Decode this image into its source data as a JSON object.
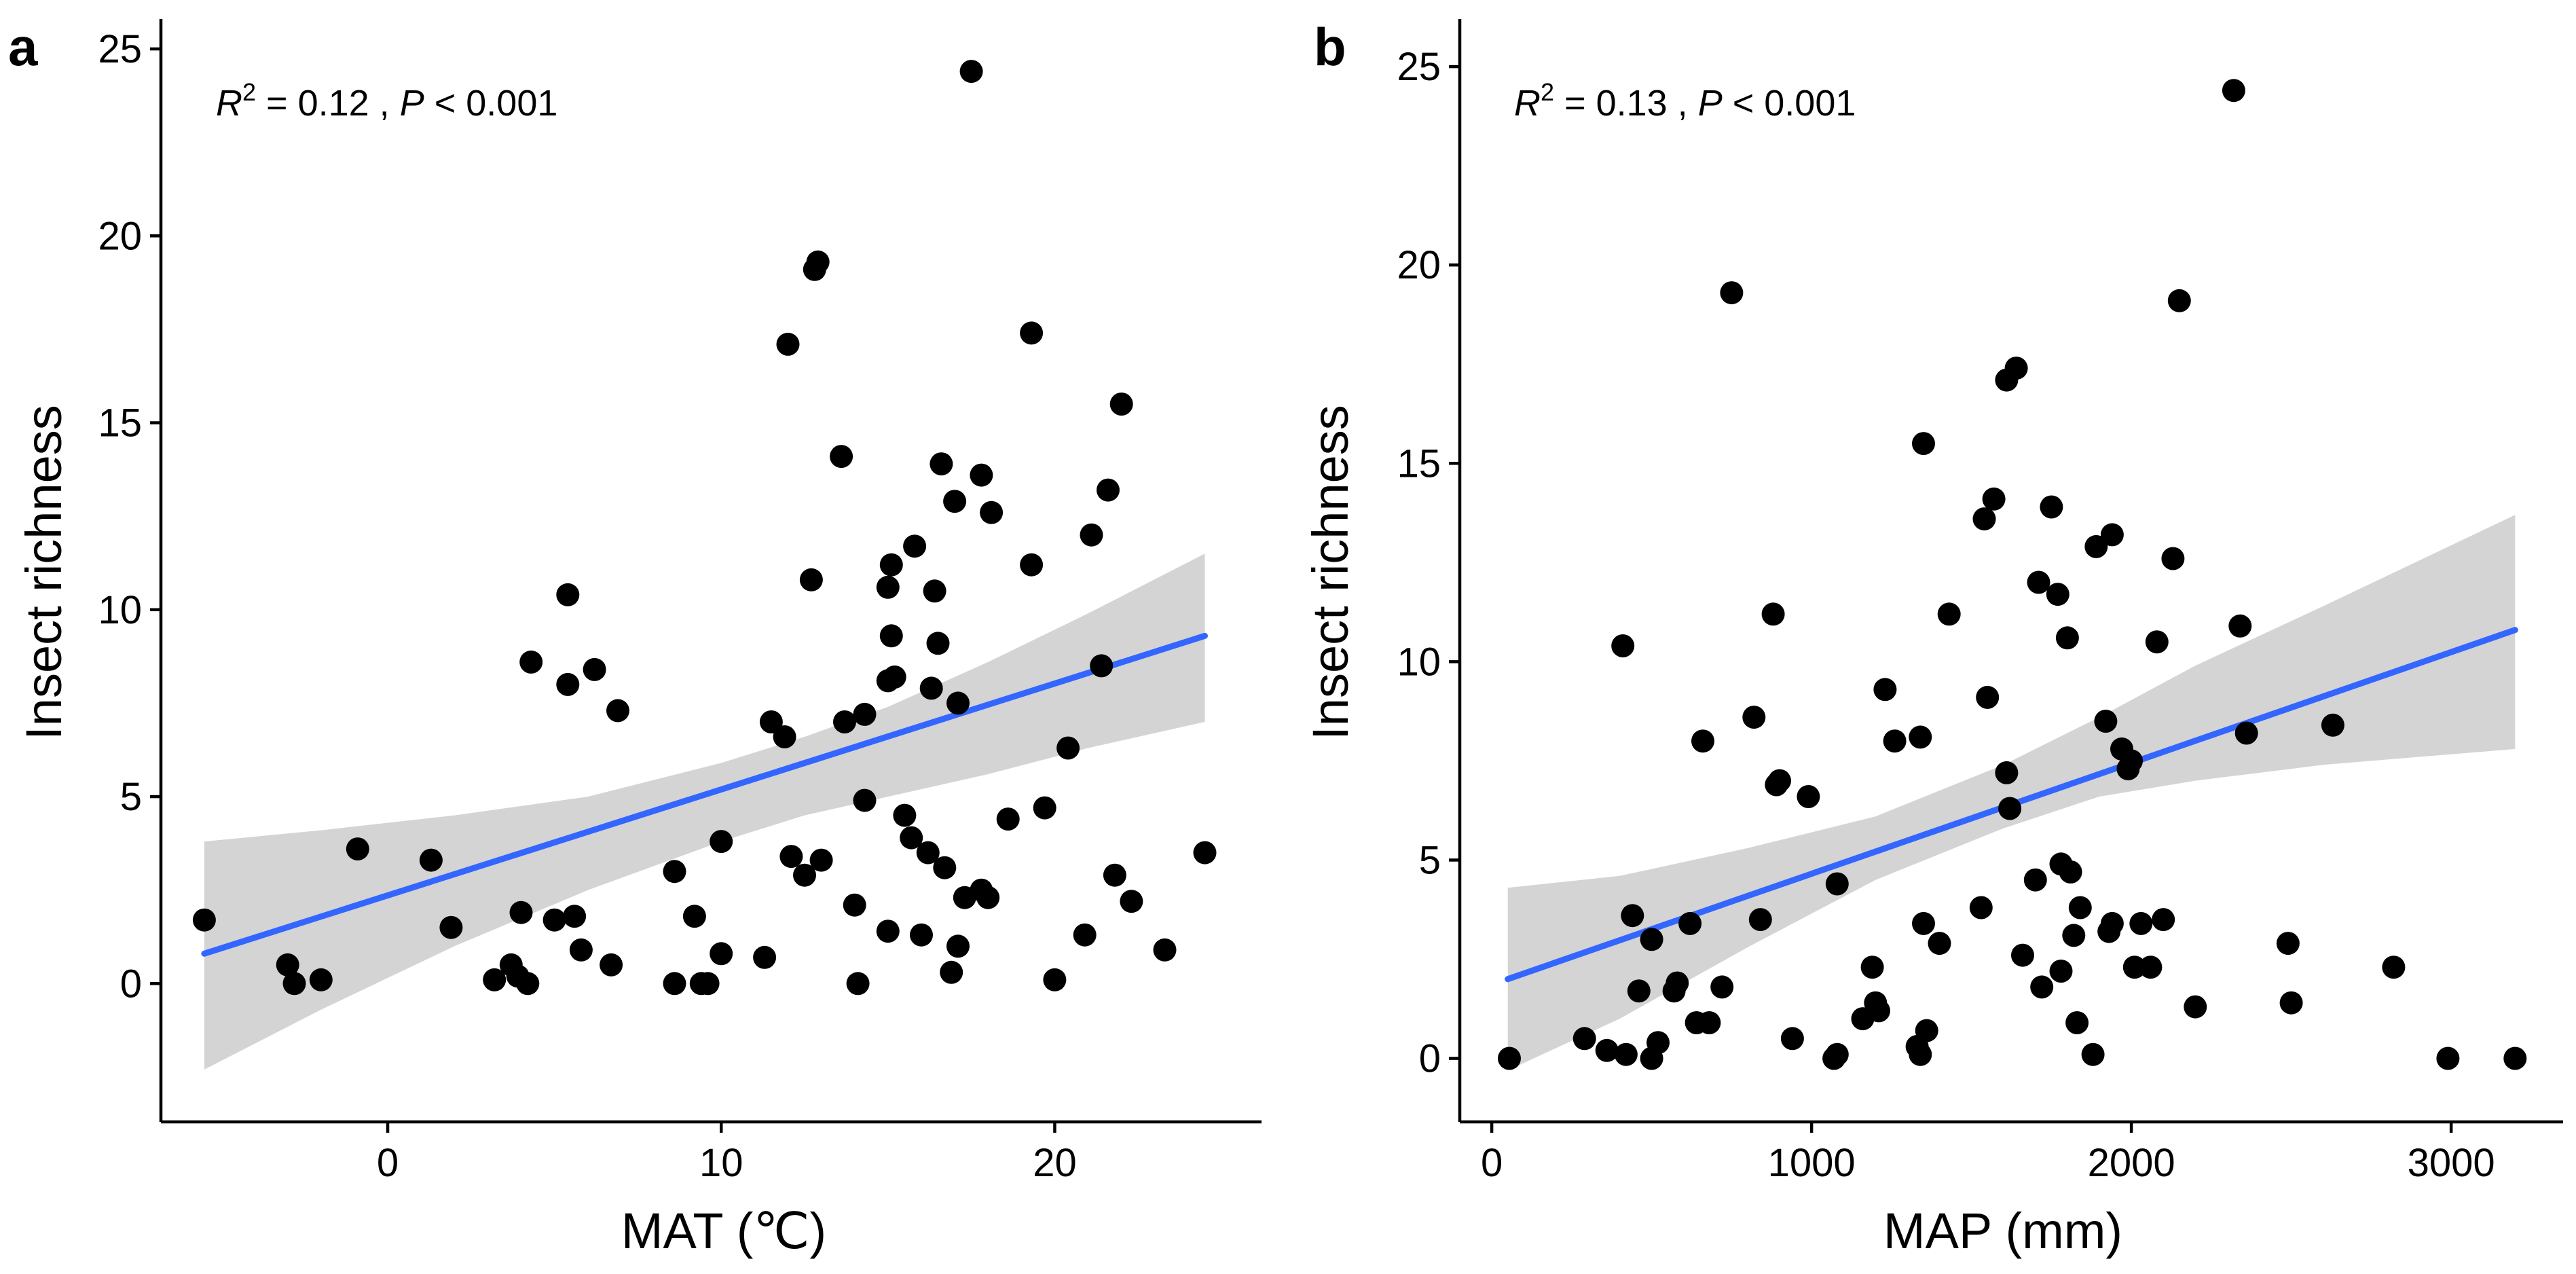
{
  "chart_data": [
    {
      "type": "scatter",
      "panel": "a",
      "xlabel": "MAT (℃)",
      "ylabel": "Insect richness",
      "annotation": {
        "r2_label": "R",
        "r2_sup": "2",
        "r2_value": " = 0.12 , ",
        "p_label": "P",
        "p_value": " < 0.001"
      },
      "xlim": [
        -6.8,
        26.2
      ],
      "ylim": [
        -3.7,
        25.8
      ],
      "x_ticks": [
        0,
        10,
        20
      ],
      "x_tick_labels": [
        "0",
        "10",
        "20"
      ],
      "y_ticks": [
        0,
        5,
        10,
        15,
        20,
        25
      ],
      "y_tick_labels": [
        "0",
        "5",
        "10",
        "15",
        "20",
        "25"
      ],
      "fit": {
        "x": [
          -5.5,
          24.5
        ],
        "y": [
          0.8,
          9.3
        ]
      },
      "ci": {
        "x": [
          -5.5,
          -2,
          2,
          6,
          10,
          12.5,
          15,
          18,
          21,
          24.5
        ],
        "lower": [
          -2.3,
          -0.7,
          1.0,
          2.5,
          3.8,
          4.5,
          5.0,
          5.6,
          6.3,
          7.0
        ],
        "upper": [
          3.8,
          4.1,
          4.5,
          5.0,
          5.9,
          6.6,
          7.4,
          8.6,
          9.9,
          11.5
        ]
      },
      "x": [
        -5.5,
        -3,
        -2.8,
        -2,
        -0.9,
        1.3,
        1.9,
        3.2,
        3.7,
        3.9,
        4,
        4.2,
        4.3,
        5,
        5.4,
        5.4,
        5.6,
        5.8,
        6.2,
        6.7,
        6.9,
        8.6,
        8.6,
        9.2,
        9.4,
        9.6,
        10,
        10,
        11.3,
        11.5,
        11.9,
        12,
        12.1,
        12.5,
        12.7,
        12.8,
        12.9,
        13,
        13.6,
        13.7,
        14,
        14.1,
        14.3,
        14.3,
        15,
        15,
        15,
        15.1,
        15.1,
        15.2,
        15.5,
        15.7,
        15.8,
        16,
        16.2,
        16.3,
        16.4,
        16.5,
        16.6,
        16.7,
        16.9,
        17,
        17.1,
        17.1,
        17.3,
        17.5,
        17.8,
        17.8,
        18,
        18.1,
        18.6,
        19.3,
        19.3,
        19.7,
        20,
        20.4,
        20.9,
        21.1,
        21.4,
        21.6,
        21.8,
        22,
        22.3,
        23.3,
        24.5
      ],
      "y": [
        1.7,
        0.5,
        0,
        0.1,
        3.6,
        3.3,
        1.5,
        0.1,
        0.5,
        0.2,
        1.9,
        0,
        8.6,
        1.7,
        10.4,
        8,
        1.8,
        0.9,
        8.4,
        0.5,
        7.3,
        3,
        0,
        1.8,
        0,
        0,
        3.8,
        0.8,
        0.7,
        7,
        6.6,
        17.1,
        3.4,
        2.9,
        10.8,
        19.1,
        19.3,
        3.3,
        14.1,
        7,
        2.1,
        0,
        7.2,
        4.9,
        10.6,
        8.1,
        1.4,
        11.2,
        9.3,
        8.2,
        4.5,
        3.9,
        11.7,
        1.3,
        3.5,
        7.9,
        10.5,
        9.1,
        13.9,
        3.1,
        0.3,
        12.9,
        7.5,
        1,
        2.3,
        24.4,
        2.5,
        13.6,
        2.3,
        12.6,
        4.4,
        17.4,
        11.2,
        4.7,
        0.1,
        6.3,
        1.3,
        12,
        8.5,
        13.2,
        2.9,
        15.5,
        2.2,
        0.9,
        3.5
      ]
    },
    {
      "type": "scatter",
      "panel": "b",
      "xlabel": "MAP (mm)",
      "ylabel": "Insect richness",
      "annotation": {
        "r2_label": "R",
        "r2_sup": "2",
        "r2_value": " = 0.13 , ",
        "p_label": "P",
        "p_value": " < 0.001"
      },
      "xlim": [
        -100,
        3350
      ],
      "ylim": [
        -1.6,
        26.2
      ],
      "x_ticks": [
        0,
        1000,
        2000,
        3000
      ],
      "x_tick_labels": [
        "0",
        "1000",
        "2000",
        "3000"
      ],
      "y_ticks": [
        0,
        5,
        10,
        15,
        20,
        25
      ],
      "y_tick_labels": [
        "0",
        "5",
        "10",
        "15",
        "20",
        "25"
      ],
      "fit": {
        "x": [
          50,
          3200
        ],
        "y": [
          2.0,
          10.8
        ]
      },
      "ci": {
        "x": [
          50,
          400,
          800,
          1200,
          1600,
          1900,
          2200,
          2600,
          3200
        ],
        "lower": [
          -0.3,
          1.0,
          2.8,
          4.5,
          5.8,
          6.6,
          7.0,
          7.4,
          7.8
        ],
        "upper": [
          4.3,
          4.6,
          5.3,
          6.1,
          7.4,
          8.6,
          9.9,
          11.4,
          13.7
        ]
      },
      "x": [
        55,
        290,
        360,
        410,
        420,
        440,
        460,
        500,
        500,
        520,
        570,
        580,
        620,
        640,
        660,
        680,
        720,
        750,
        820,
        840,
        880,
        890,
        900,
        940,
        990,
        1070,
        1080,
        1080,
        1160,
        1190,
        1200,
        1210,
        1230,
        1260,
        1330,
        1340,
        1340,
        1350,
        1350,
        1360,
        1400,
        1430,
        1530,
        1540,
        1550,
        1570,
        1610,
        1610,
        1620,
        1640,
        1660,
        1700,
        1710,
        1720,
        1750,
        1770,
        1780,
        1780,
        1800,
        1810,
        1820,
        1830,
        1840,
        1880,
        1890,
        1920,
        1930,
        1940,
        1940,
        1970,
        1990,
        2000,
        2010,
        2030,
        2060,
        2080,
        2100,
        2130,
        2150,
        2200,
        2320,
        2340,
        2360,
        2490,
        2500,
        2630,
        2820,
        2990,
        3200
      ],
      "y": [
        0,
        0.5,
        0.2,
        10.4,
        0.1,
        3.6,
        1.7,
        0,
        3,
        0.4,
        1.7,
        1.9,
        3.4,
        0.9,
        8,
        0.9,
        1.8,
        19.3,
        8.6,
        3.5,
        11.2,
        6.9,
        7,
        0.5,
        6.6,
        0,
        4.4,
        0.1,
        1,
        2.3,
        1.4,
        1.2,
        9.3,
        8,
        0.3,
        0.1,
        8.1,
        15.5,
        3.4,
        0.7,
        2.9,
        11.2,
        3.8,
        13.6,
        9.1,
        14.1,
        7.2,
        17.1,
        6.3,
        17.4,
        2.6,
        4.5,
        12,
        1.8,
        13.9,
        11.7,
        4.9,
        2.2,
        10.6,
        4.7,
        3.1,
        0.9,
        3.8,
        0.1,
        12.9,
        8.5,
        3.2,
        3.4,
        13.2,
        7.8,
        7.3,
        7.5,
        2.3,
        3.4,
        2.3,
        10.5,
        3.5,
        12.6,
        19.1,
        1.3,
        24.4,
        10.9,
        8.2,
        2.9,
        1.4,
        8.4,
        2.3,
        0,
        0
      ]
    }
  ]
}
